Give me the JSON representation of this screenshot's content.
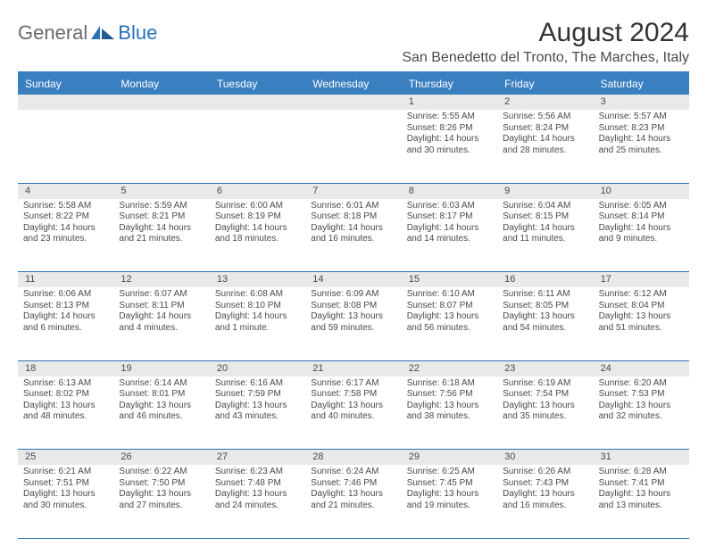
{
  "brand": {
    "general": "General",
    "blue": "Blue"
  },
  "title": "August 2024",
  "location": "San Benedetto del Tronto, The Marches, Italy",
  "colors": {
    "header_bg": "#3a7fc0",
    "daynum_bg": "#e9e9e9",
    "rule": "#2a71b8",
    "text": "#4a4a4a"
  },
  "dow": [
    "Sunday",
    "Monday",
    "Tuesday",
    "Wednesday",
    "Thursday",
    "Friday",
    "Saturday"
  ],
  "weeks": [
    [
      {
        "n": "",
        "lines": []
      },
      {
        "n": "",
        "lines": []
      },
      {
        "n": "",
        "lines": []
      },
      {
        "n": "",
        "lines": []
      },
      {
        "n": "1",
        "lines": [
          "Sunrise: 5:55 AM",
          "Sunset: 8:26 PM",
          "Daylight: 14 hours and 30 minutes."
        ]
      },
      {
        "n": "2",
        "lines": [
          "Sunrise: 5:56 AM",
          "Sunset: 8:24 PM",
          "Daylight: 14 hours and 28 minutes."
        ]
      },
      {
        "n": "3",
        "lines": [
          "Sunrise: 5:57 AM",
          "Sunset: 8:23 PM",
          "Daylight: 14 hours and 25 minutes."
        ]
      }
    ],
    [
      {
        "n": "4",
        "lines": [
          "Sunrise: 5:58 AM",
          "Sunset: 8:22 PM",
          "Daylight: 14 hours and 23 minutes."
        ]
      },
      {
        "n": "5",
        "lines": [
          "Sunrise: 5:59 AM",
          "Sunset: 8:21 PM",
          "Daylight: 14 hours and 21 minutes."
        ]
      },
      {
        "n": "6",
        "lines": [
          "Sunrise: 6:00 AM",
          "Sunset: 8:19 PM",
          "Daylight: 14 hours and 18 minutes."
        ]
      },
      {
        "n": "7",
        "lines": [
          "Sunrise: 6:01 AM",
          "Sunset: 8:18 PM",
          "Daylight: 14 hours and 16 minutes."
        ]
      },
      {
        "n": "8",
        "lines": [
          "Sunrise: 6:03 AM",
          "Sunset: 8:17 PM",
          "Daylight: 14 hours and 14 minutes."
        ]
      },
      {
        "n": "9",
        "lines": [
          "Sunrise: 6:04 AM",
          "Sunset: 8:15 PM",
          "Daylight: 14 hours and 11 minutes."
        ]
      },
      {
        "n": "10",
        "lines": [
          "Sunrise: 6:05 AM",
          "Sunset: 8:14 PM",
          "Daylight: 14 hours and 9 minutes."
        ]
      }
    ],
    [
      {
        "n": "11",
        "lines": [
          "Sunrise: 6:06 AM",
          "Sunset: 8:13 PM",
          "Daylight: 14 hours and 6 minutes."
        ]
      },
      {
        "n": "12",
        "lines": [
          "Sunrise: 6:07 AM",
          "Sunset: 8:11 PM",
          "Daylight: 14 hours and 4 minutes."
        ]
      },
      {
        "n": "13",
        "lines": [
          "Sunrise: 6:08 AM",
          "Sunset: 8:10 PM",
          "Daylight: 14 hours and 1 minute."
        ]
      },
      {
        "n": "14",
        "lines": [
          "Sunrise: 6:09 AM",
          "Sunset: 8:08 PM",
          "Daylight: 13 hours and 59 minutes."
        ]
      },
      {
        "n": "15",
        "lines": [
          "Sunrise: 6:10 AM",
          "Sunset: 8:07 PM",
          "Daylight: 13 hours and 56 minutes."
        ]
      },
      {
        "n": "16",
        "lines": [
          "Sunrise: 6:11 AM",
          "Sunset: 8:05 PM",
          "Daylight: 13 hours and 54 minutes."
        ]
      },
      {
        "n": "17",
        "lines": [
          "Sunrise: 6:12 AM",
          "Sunset: 8:04 PM",
          "Daylight: 13 hours and 51 minutes."
        ]
      }
    ],
    [
      {
        "n": "18",
        "lines": [
          "Sunrise: 6:13 AM",
          "Sunset: 8:02 PM",
          "Daylight: 13 hours and 48 minutes."
        ]
      },
      {
        "n": "19",
        "lines": [
          "Sunrise: 6:14 AM",
          "Sunset: 8:01 PM",
          "Daylight: 13 hours and 46 minutes."
        ]
      },
      {
        "n": "20",
        "lines": [
          "Sunrise: 6:16 AM",
          "Sunset: 7:59 PM",
          "Daylight: 13 hours and 43 minutes."
        ]
      },
      {
        "n": "21",
        "lines": [
          "Sunrise: 6:17 AM",
          "Sunset: 7:58 PM",
          "Daylight: 13 hours and 40 minutes."
        ]
      },
      {
        "n": "22",
        "lines": [
          "Sunrise: 6:18 AM",
          "Sunset: 7:56 PM",
          "Daylight: 13 hours and 38 minutes."
        ]
      },
      {
        "n": "23",
        "lines": [
          "Sunrise: 6:19 AM",
          "Sunset: 7:54 PM",
          "Daylight: 13 hours and 35 minutes."
        ]
      },
      {
        "n": "24",
        "lines": [
          "Sunrise: 6:20 AM",
          "Sunset: 7:53 PM",
          "Daylight: 13 hours and 32 minutes."
        ]
      }
    ],
    [
      {
        "n": "25",
        "lines": [
          "Sunrise: 6:21 AM",
          "Sunset: 7:51 PM",
          "Daylight: 13 hours and 30 minutes."
        ]
      },
      {
        "n": "26",
        "lines": [
          "Sunrise: 6:22 AM",
          "Sunset: 7:50 PM",
          "Daylight: 13 hours and 27 minutes."
        ]
      },
      {
        "n": "27",
        "lines": [
          "Sunrise: 6:23 AM",
          "Sunset: 7:48 PM",
          "Daylight: 13 hours and 24 minutes."
        ]
      },
      {
        "n": "28",
        "lines": [
          "Sunrise: 6:24 AM",
          "Sunset: 7:46 PM",
          "Daylight: 13 hours and 21 minutes."
        ]
      },
      {
        "n": "29",
        "lines": [
          "Sunrise: 6:25 AM",
          "Sunset: 7:45 PM",
          "Daylight: 13 hours and 19 minutes."
        ]
      },
      {
        "n": "30",
        "lines": [
          "Sunrise: 6:26 AM",
          "Sunset: 7:43 PM",
          "Daylight: 13 hours and 16 minutes."
        ]
      },
      {
        "n": "31",
        "lines": [
          "Sunrise: 6:28 AM",
          "Sunset: 7:41 PM",
          "Daylight: 13 hours and 13 minutes."
        ]
      }
    ]
  ]
}
